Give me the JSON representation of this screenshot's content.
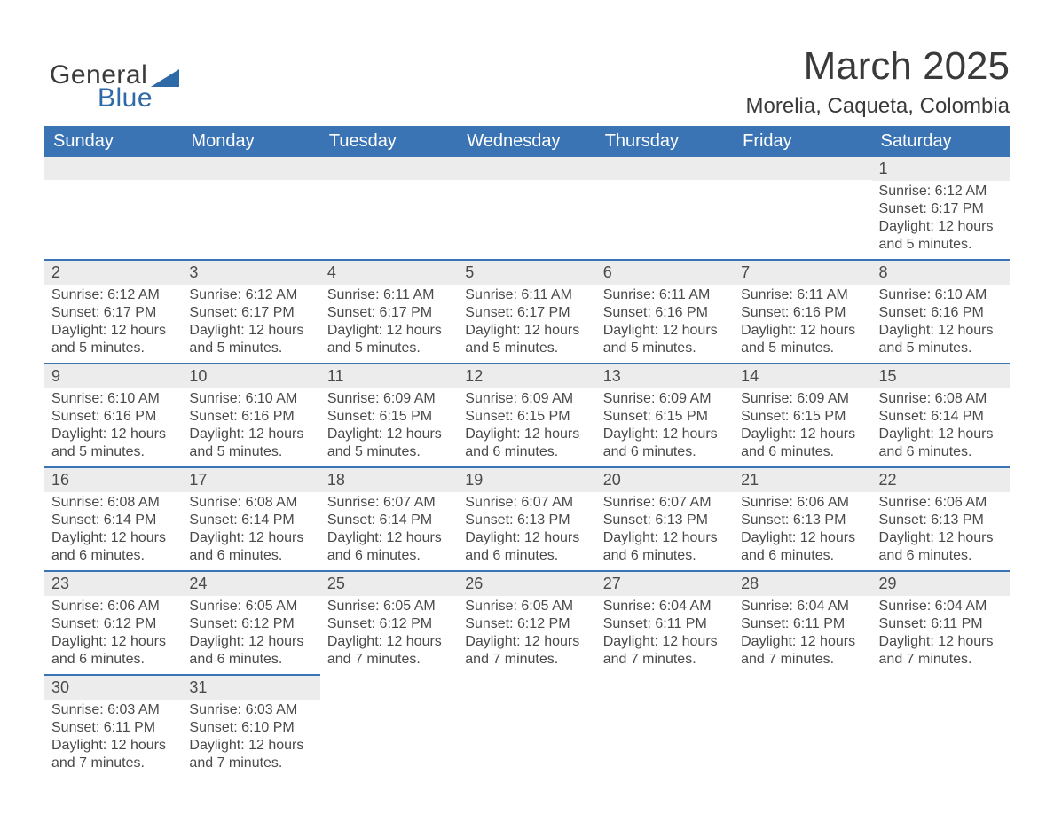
{
  "brand": {
    "general": "General",
    "blue": "Blue",
    "logo_color": "#2f6aa8"
  },
  "title": {
    "month": "March 2025",
    "location": "Morelia, Caqueta, Colombia"
  },
  "colors": {
    "header_bg": "#3b74b4",
    "header_text": "#ffffff",
    "daynum_bg": "#ececec",
    "row_border": "#3b74b4",
    "body_text": "#4a4a4a",
    "page_bg": "#ffffff"
  },
  "fonts": {
    "month_title_size": 44,
    "location_size": 24,
    "header_size": 20,
    "daynum_size": 18,
    "content_size": 16
  },
  "calendar": {
    "weekdays": [
      "Sunday",
      "Monday",
      "Tuesday",
      "Wednesday",
      "Thursday",
      "Friday",
      "Saturday"
    ],
    "weeks": [
      [
        {
          "day": "",
          "sunrise": "",
          "sunset": "",
          "daylight": ""
        },
        {
          "day": "",
          "sunrise": "",
          "sunset": "",
          "daylight": ""
        },
        {
          "day": "",
          "sunrise": "",
          "sunset": "",
          "daylight": ""
        },
        {
          "day": "",
          "sunrise": "",
          "sunset": "",
          "daylight": ""
        },
        {
          "day": "",
          "sunrise": "",
          "sunset": "",
          "daylight": ""
        },
        {
          "day": "",
          "sunrise": "",
          "sunset": "",
          "daylight": ""
        },
        {
          "day": "1",
          "sunrise": "Sunrise: 6:12 AM",
          "sunset": "Sunset: 6:17 PM",
          "daylight": "Daylight: 12 hours and 5 minutes."
        }
      ],
      [
        {
          "day": "2",
          "sunrise": "Sunrise: 6:12 AM",
          "sunset": "Sunset: 6:17 PM",
          "daylight": "Daylight: 12 hours and 5 minutes."
        },
        {
          "day": "3",
          "sunrise": "Sunrise: 6:12 AM",
          "sunset": "Sunset: 6:17 PM",
          "daylight": "Daylight: 12 hours and 5 minutes."
        },
        {
          "day": "4",
          "sunrise": "Sunrise: 6:11 AM",
          "sunset": "Sunset: 6:17 PM",
          "daylight": "Daylight: 12 hours and 5 minutes."
        },
        {
          "day": "5",
          "sunrise": "Sunrise: 6:11 AM",
          "sunset": "Sunset: 6:17 PM",
          "daylight": "Daylight: 12 hours and 5 minutes."
        },
        {
          "day": "6",
          "sunrise": "Sunrise: 6:11 AM",
          "sunset": "Sunset: 6:16 PM",
          "daylight": "Daylight: 12 hours and 5 minutes."
        },
        {
          "day": "7",
          "sunrise": "Sunrise: 6:11 AM",
          "sunset": "Sunset: 6:16 PM",
          "daylight": "Daylight: 12 hours and 5 minutes."
        },
        {
          "day": "8",
          "sunrise": "Sunrise: 6:10 AM",
          "sunset": "Sunset: 6:16 PM",
          "daylight": "Daylight: 12 hours and 5 minutes."
        }
      ],
      [
        {
          "day": "9",
          "sunrise": "Sunrise: 6:10 AM",
          "sunset": "Sunset: 6:16 PM",
          "daylight": "Daylight: 12 hours and 5 minutes."
        },
        {
          "day": "10",
          "sunrise": "Sunrise: 6:10 AM",
          "sunset": "Sunset: 6:16 PM",
          "daylight": "Daylight: 12 hours and 5 minutes."
        },
        {
          "day": "11",
          "sunrise": "Sunrise: 6:09 AM",
          "sunset": "Sunset: 6:15 PM",
          "daylight": "Daylight: 12 hours and 5 minutes."
        },
        {
          "day": "12",
          "sunrise": "Sunrise: 6:09 AM",
          "sunset": "Sunset: 6:15 PM",
          "daylight": "Daylight: 12 hours and 6 minutes."
        },
        {
          "day": "13",
          "sunrise": "Sunrise: 6:09 AM",
          "sunset": "Sunset: 6:15 PM",
          "daylight": "Daylight: 12 hours and 6 minutes."
        },
        {
          "day": "14",
          "sunrise": "Sunrise: 6:09 AM",
          "sunset": "Sunset: 6:15 PM",
          "daylight": "Daylight: 12 hours and 6 minutes."
        },
        {
          "day": "15",
          "sunrise": "Sunrise: 6:08 AM",
          "sunset": "Sunset: 6:14 PM",
          "daylight": "Daylight: 12 hours and 6 minutes."
        }
      ],
      [
        {
          "day": "16",
          "sunrise": "Sunrise: 6:08 AM",
          "sunset": "Sunset: 6:14 PM",
          "daylight": "Daylight: 12 hours and 6 minutes."
        },
        {
          "day": "17",
          "sunrise": "Sunrise: 6:08 AM",
          "sunset": "Sunset: 6:14 PM",
          "daylight": "Daylight: 12 hours and 6 minutes."
        },
        {
          "day": "18",
          "sunrise": "Sunrise: 6:07 AM",
          "sunset": "Sunset: 6:14 PM",
          "daylight": "Daylight: 12 hours and 6 minutes."
        },
        {
          "day": "19",
          "sunrise": "Sunrise: 6:07 AM",
          "sunset": "Sunset: 6:13 PM",
          "daylight": "Daylight: 12 hours and 6 minutes."
        },
        {
          "day": "20",
          "sunrise": "Sunrise: 6:07 AM",
          "sunset": "Sunset: 6:13 PM",
          "daylight": "Daylight: 12 hours and 6 minutes."
        },
        {
          "day": "21",
          "sunrise": "Sunrise: 6:06 AM",
          "sunset": "Sunset: 6:13 PM",
          "daylight": "Daylight: 12 hours and 6 minutes."
        },
        {
          "day": "22",
          "sunrise": "Sunrise: 6:06 AM",
          "sunset": "Sunset: 6:13 PM",
          "daylight": "Daylight: 12 hours and 6 minutes."
        }
      ],
      [
        {
          "day": "23",
          "sunrise": "Sunrise: 6:06 AM",
          "sunset": "Sunset: 6:12 PM",
          "daylight": "Daylight: 12 hours and 6 minutes."
        },
        {
          "day": "24",
          "sunrise": "Sunrise: 6:05 AM",
          "sunset": "Sunset: 6:12 PM",
          "daylight": "Daylight: 12 hours and 6 minutes."
        },
        {
          "day": "25",
          "sunrise": "Sunrise: 6:05 AM",
          "sunset": "Sunset: 6:12 PM",
          "daylight": "Daylight: 12 hours and 7 minutes."
        },
        {
          "day": "26",
          "sunrise": "Sunrise: 6:05 AM",
          "sunset": "Sunset: 6:12 PM",
          "daylight": "Daylight: 12 hours and 7 minutes."
        },
        {
          "day": "27",
          "sunrise": "Sunrise: 6:04 AM",
          "sunset": "Sunset: 6:11 PM",
          "daylight": "Daylight: 12 hours and 7 minutes."
        },
        {
          "day": "28",
          "sunrise": "Sunrise: 6:04 AM",
          "sunset": "Sunset: 6:11 PM",
          "daylight": "Daylight: 12 hours and 7 minutes."
        },
        {
          "day": "29",
          "sunrise": "Sunrise: 6:04 AM",
          "sunset": "Sunset: 6:11 PM",
          "daylight": "Daylight: 12 hours and 7 minutes."
        }
      ],
      [
        {
          "day": "30",
          "sunrise": "Sunrise: 6:03 AM",
          "sunset": "Sunset: 6:11 PM",
          "daylight": "Daylight: 12 hours and 7 minutes."
        },
        {
          "day": "31",
          "sunrise": "Sunrise: 6:03 AM",
          "sunset": "Sunset: 6:10 PM",
          "daylight": "Daylight: 12 hours and 7 minutes."
        },
        {
          "day": "",
          "sunrise": "",
          "sunset": "",
          "daylight": ""
        },
        {
          "day": "",
          "sunrise": "",
          "sunset": "",
          "daylight": ""
        },
        {
          "day": "",
          "sunrise": "",
          "sunset": "",
          "daylight": ""
        },
        {
          "day": "",
          "sunrise": "",
          "sunset": "",
          "daylight": ""
        },
        {
          "day": "",
          "sunrise": "",
          "sunset": "",
          "daylight": ""
        }
      ]
    ]
  }
}
